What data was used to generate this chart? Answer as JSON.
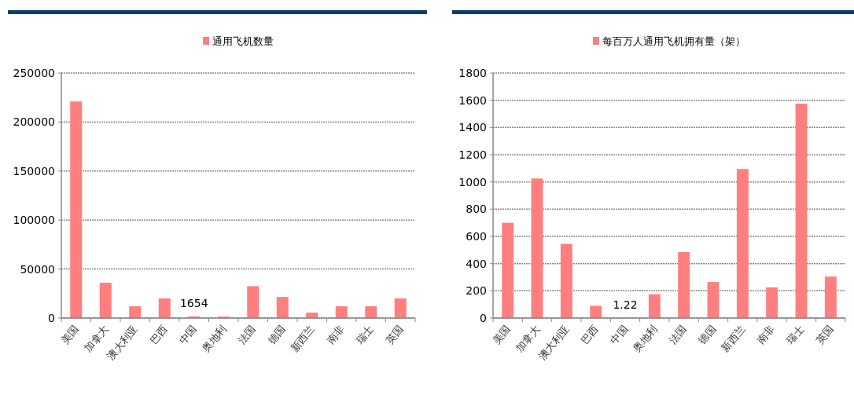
{
  "chart_data": [
    {
      "type": "bar",
      "categories": [
        "美国",
        "加拿大",
        "澳大利亚",
        "巴西",
        "中国",
        "奥地利",
        "法国",
        "德国",
        "新西兰",
        "南非",
        "瑞士",
        "英国"
      ],
      "series": [
        {
          "name": "通用飞机数量",
          "color": "#ff7f7f",
          "values": [
            221000,
            36000,
            12000,
            20000,
            1654,
            1500,
            32500,
            21500,
            5500,
            12000,
            12000,
            20000
          ],
          "value_labels": [
            null,
            null,
            null,
            null,
            "1654",
            null,
            null,
            null,
            null,
            null,
            null,
            null
          ]
        }
      ],
      "ylim": [
        0,
        250000
      ],
      "yticks": [
        0,
        50000,
        100000,
        150000,
        200000,
        250000
      ],
      "grid": "y",
      "legend": "top"
    },
    {
      "type": "bar",
      "categories": [
        "美国",
        "加拿大",
        "澳大利亚",
        "巴西",
        "中国",
        "奥地利",
        "法国",
        "德国",
        "新西兰",
        "南非",
        "瑞士",
        "英国"
      ],
      "series": [
        {
          "name": "每百万人通用飞机拥有量（架）",
          "color": "#ff7f7f",
          "values": [
            700,
            1025,
            545,
            90,
            1.22,
            175,
            485,
            265,
            1095,
            225,
            1575,
            305
          ],
          "value_labels": [
            null,
            null,
            null,
            null,
            "1.22",
            null,
            null,
            null,
            null,
            null,
            null,
            null
          ]
        }
      ],
      "ylim": [
        0,
        1800
      ],
      "yticks": [
        0,
        200,
        400,
        600,
        800,
        1000,
        1200,
        1400,
        1600,
        1800
      ],
      "grid": "y",
      "legend": "top"
    }
  ]
}
